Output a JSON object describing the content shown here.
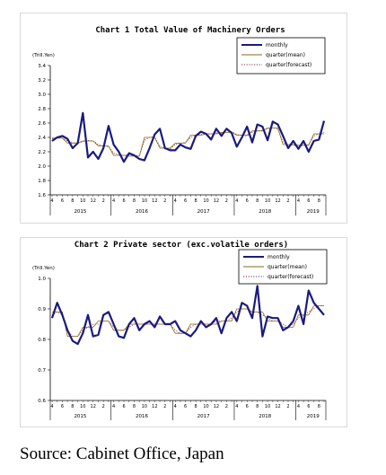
{
  "colors": {
    "monthly": "#1a1a80",
    "quarter_mean": "#8b6914",
    "quarter_forecast": "#7a2a40"
  },
  "month_tick_labels": [
    "4",
    "6",
    "8",
    "10",
    "12",
    "2"
  ],
  "source": "Source: Cabinet Office, Japan",
  "chart_data": [
    {
      "type": "line",
      "title": "Chart 1 Total Value of Machinery Orders",
      "ylabel": "(Trill.Yen)",
      "ylim": [
        1.6,
        3.4
      ],
      "yticks": [
        "1.6",
        "1.8",
        "2.0",
        "2.2",
        "2.4",
        "2.6",
        "2.8",
        "3.0",
        "3.2",
        "3.4"
      ],
      "years": [
        "2015",
        "2016",
        "2017",
        "2018",
        "2019"
      ],
      "grid": false,
      "legend_position": "top-right",
      "series": [
        {
          "name": "monthly",
          "style": "solid-thick",
          "values": [
            2.35,
            2.4,
            2.42,
            2.38,
            2.25,
            2.32,
            2.74,
            2.12,
            2.2,
            2.1,
            2.25,
            2.56,
            2.3,
            2.2,
            2.06,
            2.18,
            2.15,
            2.1,
            2.08,
            2.25,
            2.44,
            2.52,
            2.25,
            2.22,
            2.22,
            2.3,
            2.26,
            2.24,
            2.42,
            2.48,
            2.45,
            2.37,
            2.52,
            2.42,
            2.52,
            2.46,
            2.27,
            2.4,
            2.55,
            2.33,
            2.58,
            2.55,
            2.36,
            2.62,
            2.58,
            2.42,
            2.25,
            2.35,
            2.24,
            2.35,
            2.2,
            2.35,
            2.37,
            2.63
          ]
        },
        {
          "name": "quarter(mean)",
          "style": "solid-thin",
          "values": [
            2.39,
            2.39,
            2.39,
            2.32,
            2.32,
            2.32,
            2.35,
            2.35,
            2.35,
            2.28,
            2.28,
            2.28,
            2.15,
            2.15,
            2.15,
            2.14,
            2.14,
            2.14,
            2.4,
            2.4,
            2.4,
            2.25,
            2.25,
            2.25,
            2.32,
            2.32,
            2.32,
            2.43,
            2.43,
            2.43,
            2.45,
            2.45,
            2.45,
            2.47,
            2.47,
            2.47,
            2.43,
            2.43,
            2.43,
            2.49,
            2.49,
            2.49,
            2.53,
            2.53,
            2.53,
            2.3,
            2.3,
            2.3,
            2.29,
            2.29,
            2.29,
            2.45,
            2.45,
            2.45
          ]
        },
        {
          "name": "quarter(forecast)",
          "style": "dotted",
          "values": [
            2.38,
            2.4,
            2.39,
            2.35,
            2.33,
            2.32,
            2.34,
            2.36,
            2.35,
            2.3,
            2.28,
            2.27,
            2.18,
            2.16,
            2.15,
            2.16,
            2.15,
            2.14,
            2.36,
            2.4,
            2.41,
            2.27,
            2.25,
            2.24,
            2.3,
            2.32,
            2.33,
            2.4,
            2.43,
            2.44,
            2.44,
            2.45,
            2.46,
            2.46,
            2.47,
            2.48,
            2.44,
            2.43,
            2.42,
            2.47,
            2.49,
            2.5,
            2.52,
            2.53,
            2.52,
            2.33,
            2.3,
            2.29,
            2.28,
            2.29,
            2.3,
            2.42,
            2.45,
            2.47
          ]
        }
      ]
    },
    {
      "type": "line",
      "title": "Chart 2 Private sector (exc.volatile orders)",
      "ylabel": "(Trill.Yen)",
      "ylim": [
        0.6,
        1.0
      ],
      "yticks": [
        "0.6",
        "0.7",
        "0.8",
        "0.9",
        "1.0"
      ],
      "years": [
        "2015",
        "2016",
        "2017",
        "2018",
        "2019"
      ],
      "grid": false,
      "legend_position": "top-right",
      "series": [
        {
          "name": "monthly",
          "style": "solid-thick",
          "values": [
            0.87,
            0.92,
            0.88,
            0.83,
            0.795,
            0.785,
            0.82,
            0.88,
            0.81,
            0.815,
            0.88,
            0.89,
            0.85,
            0.81,
            0.805,
            0.85,
            0.87,
            0.83,
            0.85,
            0.86,
            0.84,
            0.875,
            0.85,
            0.85,
            0.86,
            0.83,
            0.82,
            0.81,
            0.83,
            0.86,
            0.84,
            0.85,
            0.87,
            0.82,
            0.87,
            0.89,
            0.86,
            0.92,
            0.91,
            0.87,
            0.975,
            0.81,
            0.875,
            0.87,
            0.87,
            0.83,
            0.84,
            0.86,
            0.91,
            0.85,
            0.96,
            0.92,
            0.9,
            0.88
          ]
        },
        {
          "name": "quarter(mean)",
          "style": "solid-thin",
          "values": [
            0.89,
            0.89,
            0.89,
            0.81,
            0.81,
            0.81,
            0.84,
            0.84,
            0.84,
            0.86,
            0.86,
            0.86,
            0.83,
            0.83,
            0.83,
            0.85,
            0.85,
            0.85,
            0.85,
            0.85,
            0.85,
            0.85,
            0.85,
            0.85,
            0.82,
            0.82,
            0.82,
            0.85,
            0.85,
            0.85,
            0.85,
            0.85,
            0.85,
            0.86,
            0.86,
            0.86,
            0.9,
            0.9,
            0.9,
            0.89,
            0.89,
            0.89,
            0.86,
            0.86,
            0.86,
            0.84,
            0.84,
            0.84,
            0.88,
            0.88,
            0.88,
            0.91,
            0.91,
            0.91
          ]
        },
        {
          "name": "quarter(forecast)",
          "style": "dotted",
          "values": [
            0.88,
            0.89,
            0.88,
            0.83,
            0.81,
            0.81,
            0.83,
            0.84,
            0.85,
            0.85,
            0.86,
            0.86,
            0.84,
            0.83,
            0.83,
            0.84,
            0.85,
            0.85,
            0.85,
            0.85,
            0.85,
            0.85,
            0.85,
            0.85,
            0.83,
            0.82,
            0.82,
            0.84,
            0.85,
            0.85,
            0.85,
            0.85,
            0.86,
            0.86,
            0.86,
            0.87,
            0.89,
            0.9,
            0.9,
            0.89,
            0.89,
            0.88,
            0.87,
            0.86,
            0.86,
            0.85,
            0.84,
            0.85,
            0.87,
            0.88,
            0.89,
            0.9,
            0.91,
            0.91
          ]
        }
      ]
    }
  ]
}
